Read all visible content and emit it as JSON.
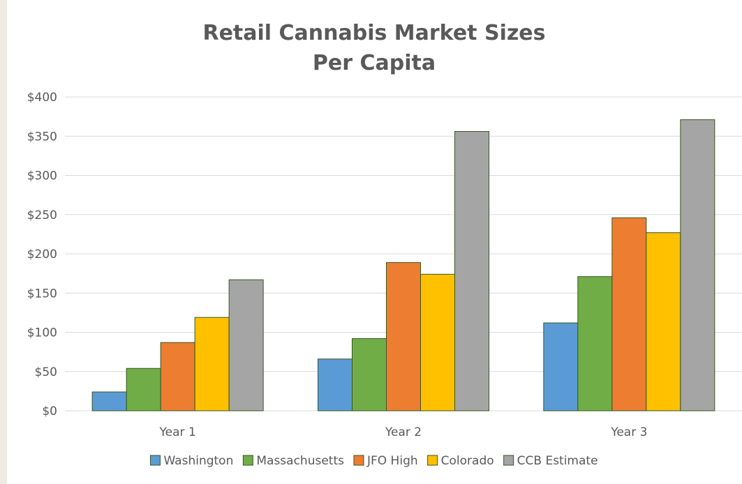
{
  "chart_data": {
    "type": "bar",
    "title": "Retail Cannabis Market Sizes",
    "subtitle": "Per Capita",
    "categories": [
      "Year 1",
      "Year 2",
      "Year 3"
    ],
    "series": [
      {
        "name": "Washington",
        "values": [
          24,
          66,
          112
        ],
        "color": "#5b9bd5"
      },
      {
        "name": "Massachusetts",
        "values": [
          54,
          92,
          171
        ],
        "color": "#70ad47"
      },
      {
        "name": "JFO High",
        "values": [
          87,
          189,
          246
        ],
        "color": "#ed7d31"
      },
      {
        "name": "Colorado",
        "values": [
          119,
          174,
          227
        ],
        "color": "#ffc000"
      },
      {
        "name": "CCB Estimate",
        "values": [
          167,
          356,
          371
        ],
        "color": "#a5a5a5"
      }
    ],
    "bar_outline_color": "#375623",
    "ylim": [
      0,
      400
    ],
    "y_ticks": [
      0,
      50,
      100,
      150,
      200,
      250,
      300,
      350,
      400
    ],
    "y_tick_labels": [
      "$0",
      "$50",
      "$100",
      "$150",
      "$200",
      "$250",
      "$300",
      "$350",
      "$400"
    ],
    "grid": true,
    "legend_position": "bottom",
    "xlabel": "",
    "ylabel": ""
  }
}
